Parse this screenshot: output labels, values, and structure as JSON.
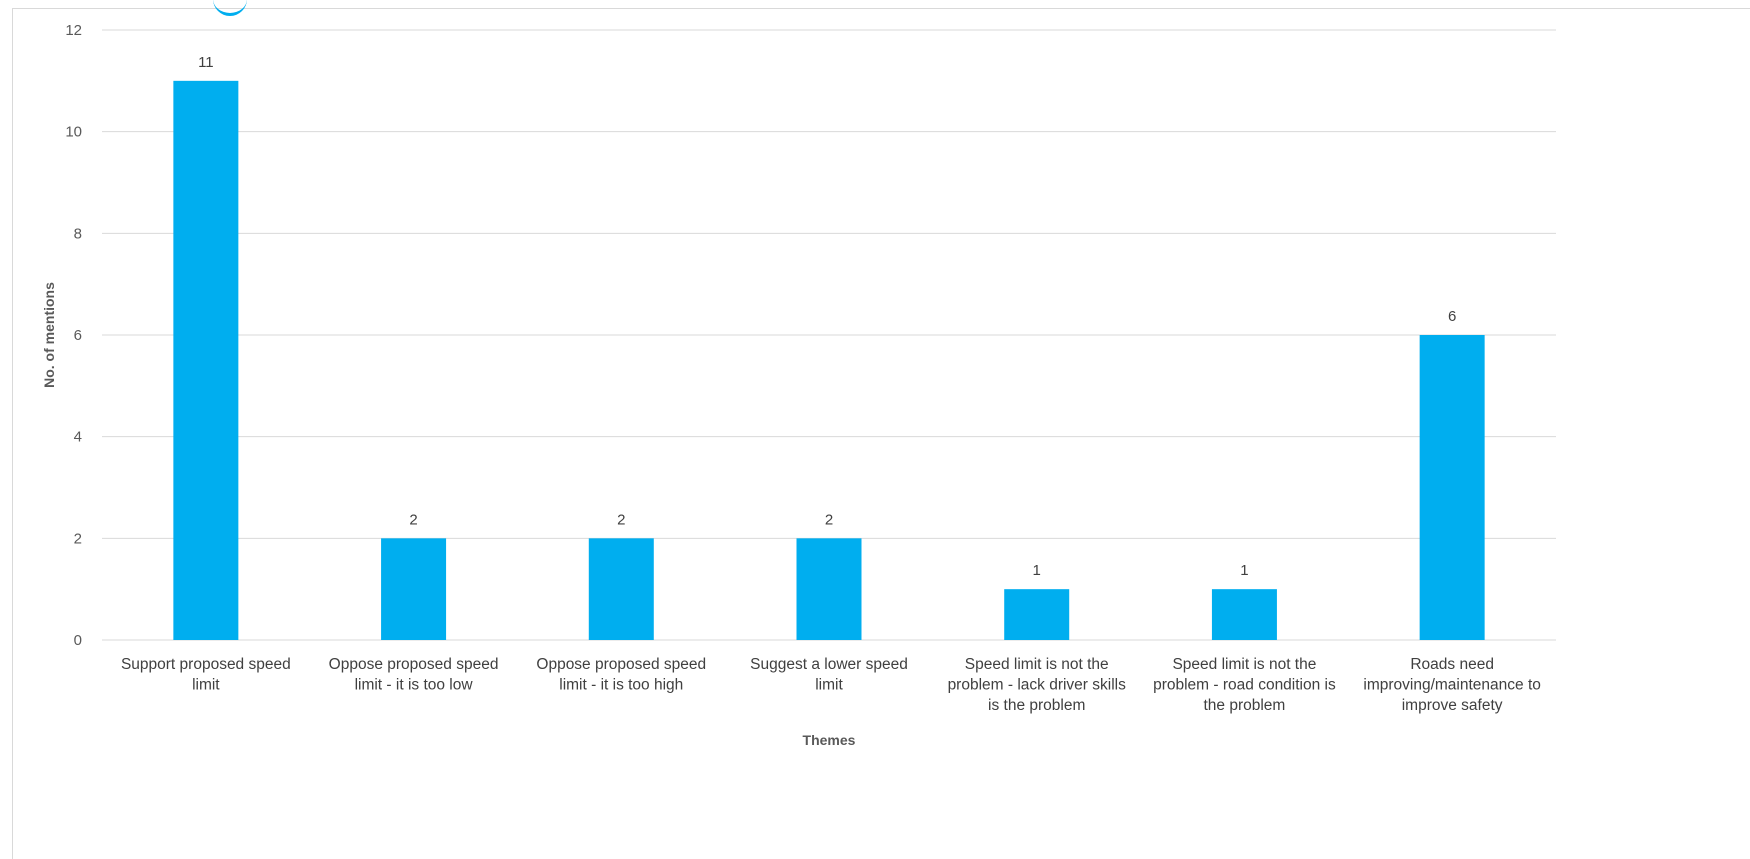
{
  "chart_data": {
    "type": "bar",
    "categories": [
      "Support proposed speed limit",
      "Oppose proposed speed limit - it is too low",
      "Oppose proposed speed limit - it is too high",
      "Suggest a lower speed limit",
      "Speed limit is not the problem - lack driver skills is the problem",
      "Speed limit is not the problem - road condition is the problem",
      "Roads need improving/maintenance to improve safety"
    ],
    "category_lines": [
      [
        "Support proposed speed",
        "limit"
      ],
      [
        "Oppose proposed speed",
        "limit - it is too low"
      ],
      [
        "Oppose proposed speed",
        "limit - it is too high"
      ],
      [
        "Suggest a lower speed",
        "limit"
      ],
      [
        "Speed limit is not the",
        "problem - lack driver skills",
        "is the problem"
      ],
      [
        "Speed limit is not the",
        "problem - road condition is",
        "the problem"
      ],
      [
        "Roads need",
        "improving/maintenance to",
        "improve safety"
      ]
    ],
    "values": [
      11,
      2,
      2,
      2,
      1,
      1,
      6
    ],
    "data_labels": [
      "11",
      "2",
      "2",
      "2",
      "1",
      "1",
      "6"
    ],
    "title": "",
    "xlabel": "Themes",
    "ylabel": "No. of mentions",
    "ylim": [
      0,
      12
    ],
    "yticks": [
      "0",
      "2",
      "4",
      "6",
      "8",
      "10",
      "12"
    ],
    "grid": true,
    "legend": "none",
    "bar_color": "#00aeef",
    "grid_color": "#d9d9d9"
  }
}
